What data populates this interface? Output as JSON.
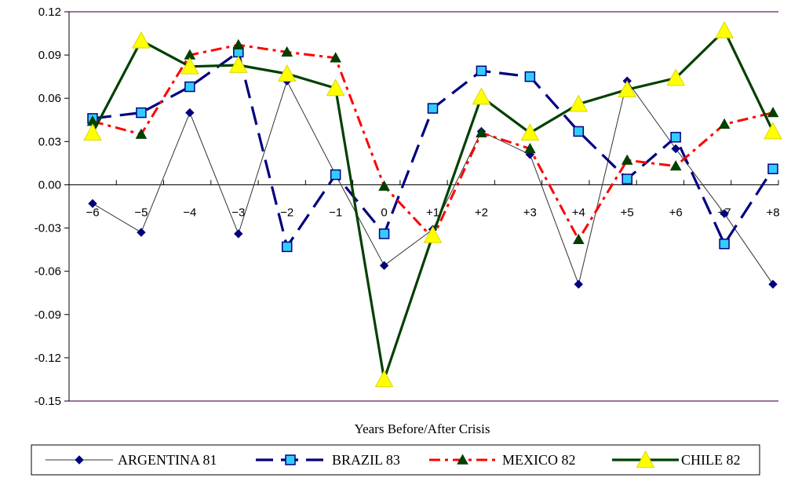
{
  "chart_data": {
    "type": "line",
    "title": "",
    "xlabel": "Years Before/After Crisis",
    "ylabel": "",
    "ylim": [
      -0.15,
      0.12
    ],
    "yticks": [
      "0.12",
      "0.09",
      "0.06",
      "0.03",
      "0.00",
      "-0.03",
      "-0.06",
      "-0.09",
      "-0.12",
      "-0.15"
    ],
    "ytick_values": [
      0.12,
      0.09,
      0.06,
      0.03,
      0.0,
      -0.03,
      -0.06,
      -0.09,
      -0.12,
      -0.15
    ],
    "categories": [
      "-6",
      "-5",
      "-4",
      "-3",
      "-2",
      "-1",
      "0",
      "+1",
      "+2",
      "+3",
      "+4",
      "+5",
      "+6",
      "+7",
      "+8"
    ],
    "grid": false,
    "legend_position": "bottom",
    "series": [
      {
        "name": "ARGENTINA 81",
        "color": "#000080",
        "line_color": "#333333",
        "marker": "diamond",
        "line_style": "solid-thin",
        "values": [
          -0.013,
          -0.033,
          0.05,
          -0.034,
          0.072,
          0.007,
          -0.056,
          -0.031,
          0.037,
          0.021,
          -0.069,
          0.072,
          0.025,
          -0.02,
          -0.069
        ]
      },
      {
        "name": "BRAZIL 83",
        "color": "#000080",
        "marker_fill": "#33ccff",
        "marker": "square",
        "line_style": "long-dash",
        "values": [
          0.046,
          0.05,
          0.068,
          0.092,
          -0.043,
          0.007,
          -0.034,
          0.053,
          0.079,
          0.075,
          0.037,
          0.004,
          0.033,
          -0.041,
          0.011
        ]
      },
      {
        "name": "MEXICO 82",
        "color": "#ff0000",
        "marker_fill": "#004000",
        "marker": "triangle",
        "line_style": "dash-dot",
        "values": [
          0.044,
          0.035,
          0.09,
          0.097,
          0.092,
          0.088,
          -0.001,
          -0.037,
          0.036,
          0.025,
          -0.038,
          0.017,
          0.013,
          0.042,
          0.05
        ]
      },
      {
        "name": "CHILE 82",
        "color": "#004000",
        "marker_fill": "#ffff00",
        "marker": "big-triangle",
        "line_style": "solid-thick",
        "values": [
          0.036,
          0.1,
          0.082,
          0.083,
          0.077,
          0.067,
          -0.135,
          -0.035,
          0.061,
          0.036,
          0.056,
          0.066,
          0.074,
          0.107,
          0.037
        ]
      }
    ]
  }
}
